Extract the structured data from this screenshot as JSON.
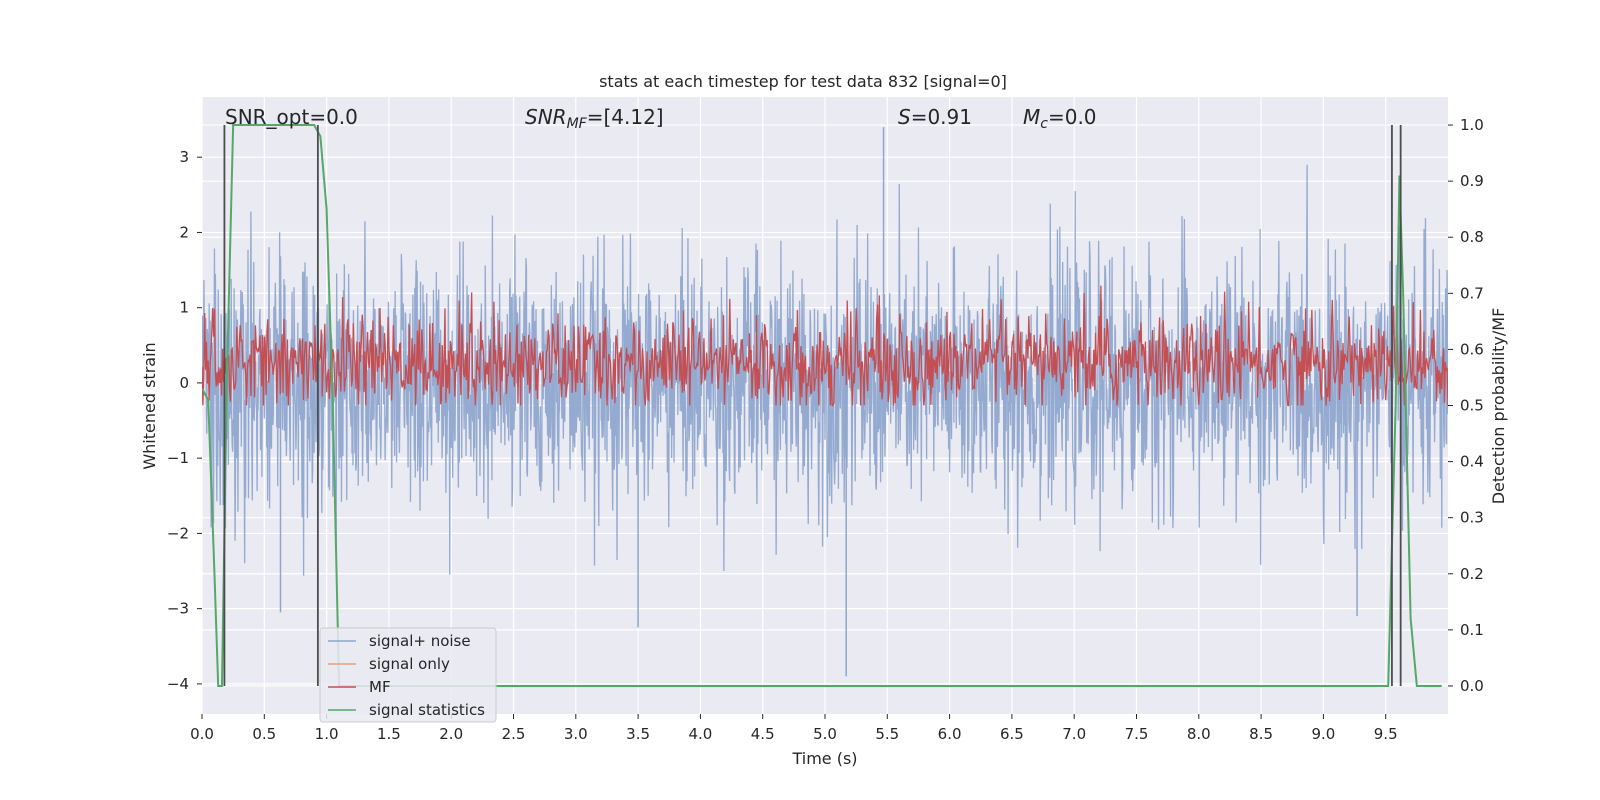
{
  "chart_data": {
    "type": "line",
    "title": "stats at each timestep for test data 832 [signal=0]",
    "xlabel": "Time (s)",
    "ylabel_left": "Whitened strain",
    "ylabel_right": "Detection probability/MF",
    "xlim": [
      0.0,
      10.0
    ],
    "ylim_left": [
      -4.4,
      3.8
    ],
    "ylim_right": [
      -0.05,
      1.05
    ],
    "xticks": [
      "0.0",
      "0.5",
      "1.0",
      "1.5",
      "2.0",
      "2.5",
      "3.0",
      "3.5",
      "4.0",
      "4.5",
      "5.0",
      "5.5",
      "6.0",
      "6.5",
      "7.0",
      "7.5",
      "8.0",
      "8.5",
      "9.0",
      "9.5"
    ],
    "yticks_left": [
      "3",
      "2",
      "1",
      "0",
      "−1",
      "−2",
      "−3",
      "−4"
    ],
    "yticks_right": [
      "1.0",
      "0.9",
      "0.8",
      "0.7",
      "0.6",
      "0.5",
      "0.4",
      "0.3",
      "0.2",
      "0.1",
      "0.0"
    ],
    "annotations": {
      "snr_opt": "SNR_opt=0.0",
      "snr_mf_base": "SNR",
      "snr_mf_sub": "MF",
      "snr_mf_value": "=[4.12]",
      "s_sym": "S",
      "s_value": "=0.91",
      "mc_base": "M",
      "mc_sub": "c",
      "mc_value": "=0.0"
    },
    "legend": [
      "signal+ noise",
      "signal only",
      "MF",
      "signal statistics"
    ],
    "legend_location": "lower-left",
    "colors": {
      "noise": "#8fa6cd",
      "signal_only": "#e8a07c",
      "mf": "#c44e52",
      "stats": "#55a868",
      "vline": "#4d4d4d",
      "background": "#eaeaf2",
      "grid": "#ffffff"
    },
    "series": [
      {
        "name": "signal+ noise",
        "description": "whitened strain noise, approx. Gaussian, sigma~0.8, extremes ~[-3.9, 3.4]",
        "sigma": 0.8,
        "spikes": [
          {
            "x": 5.17,
            "y": -3.9
          },
          {
            "x": 5.47,
            "y": 3.4
          },
          {
            "x": 3.5,
            "y": -3.25
          },
          {
            "x": 9.27,
            "y": -3.1
          },
          {
            "x": 0.63,
            "y": -3.05
          }
        ]
      },
      {
        "name": "signal only",
        "values": []
      },
      {
        "name": "MF",
        "description": "matched-filter output on right axis, approx 0.50-0.72",
        "baseline": 0.575,
        "spread": 0.04
      },
      {
        "name": "signal statistics",
        "x": [
          0.0,
          0.05,
          0.1,
          0.13,
          0.16,
          0.2,
          0.25,
          0.9,
          0.95,
          1.0,
          1.05,
          1.1,
          9.45,
          9.52,
          9.58,
          9.61,
          9.64,
          9.7,
          9.75,
          9.95
        ],
        "y": [
          0.53,
          0.51,
          0.2,
          0.0,
          0.0,
          0.55,
          1.0,
          1.0,
          0.98,
          0.85,
          0.5,
          0.0,
          0.0,
          0.0,
          0.5,
          0.91,
          0.7,
          0.12,
          0.0,
          0.0
        ]
      }
    ],
    "vlines": [
      0.18,
      0.93,
      9.55,
      9.62
    ]
  }
}
